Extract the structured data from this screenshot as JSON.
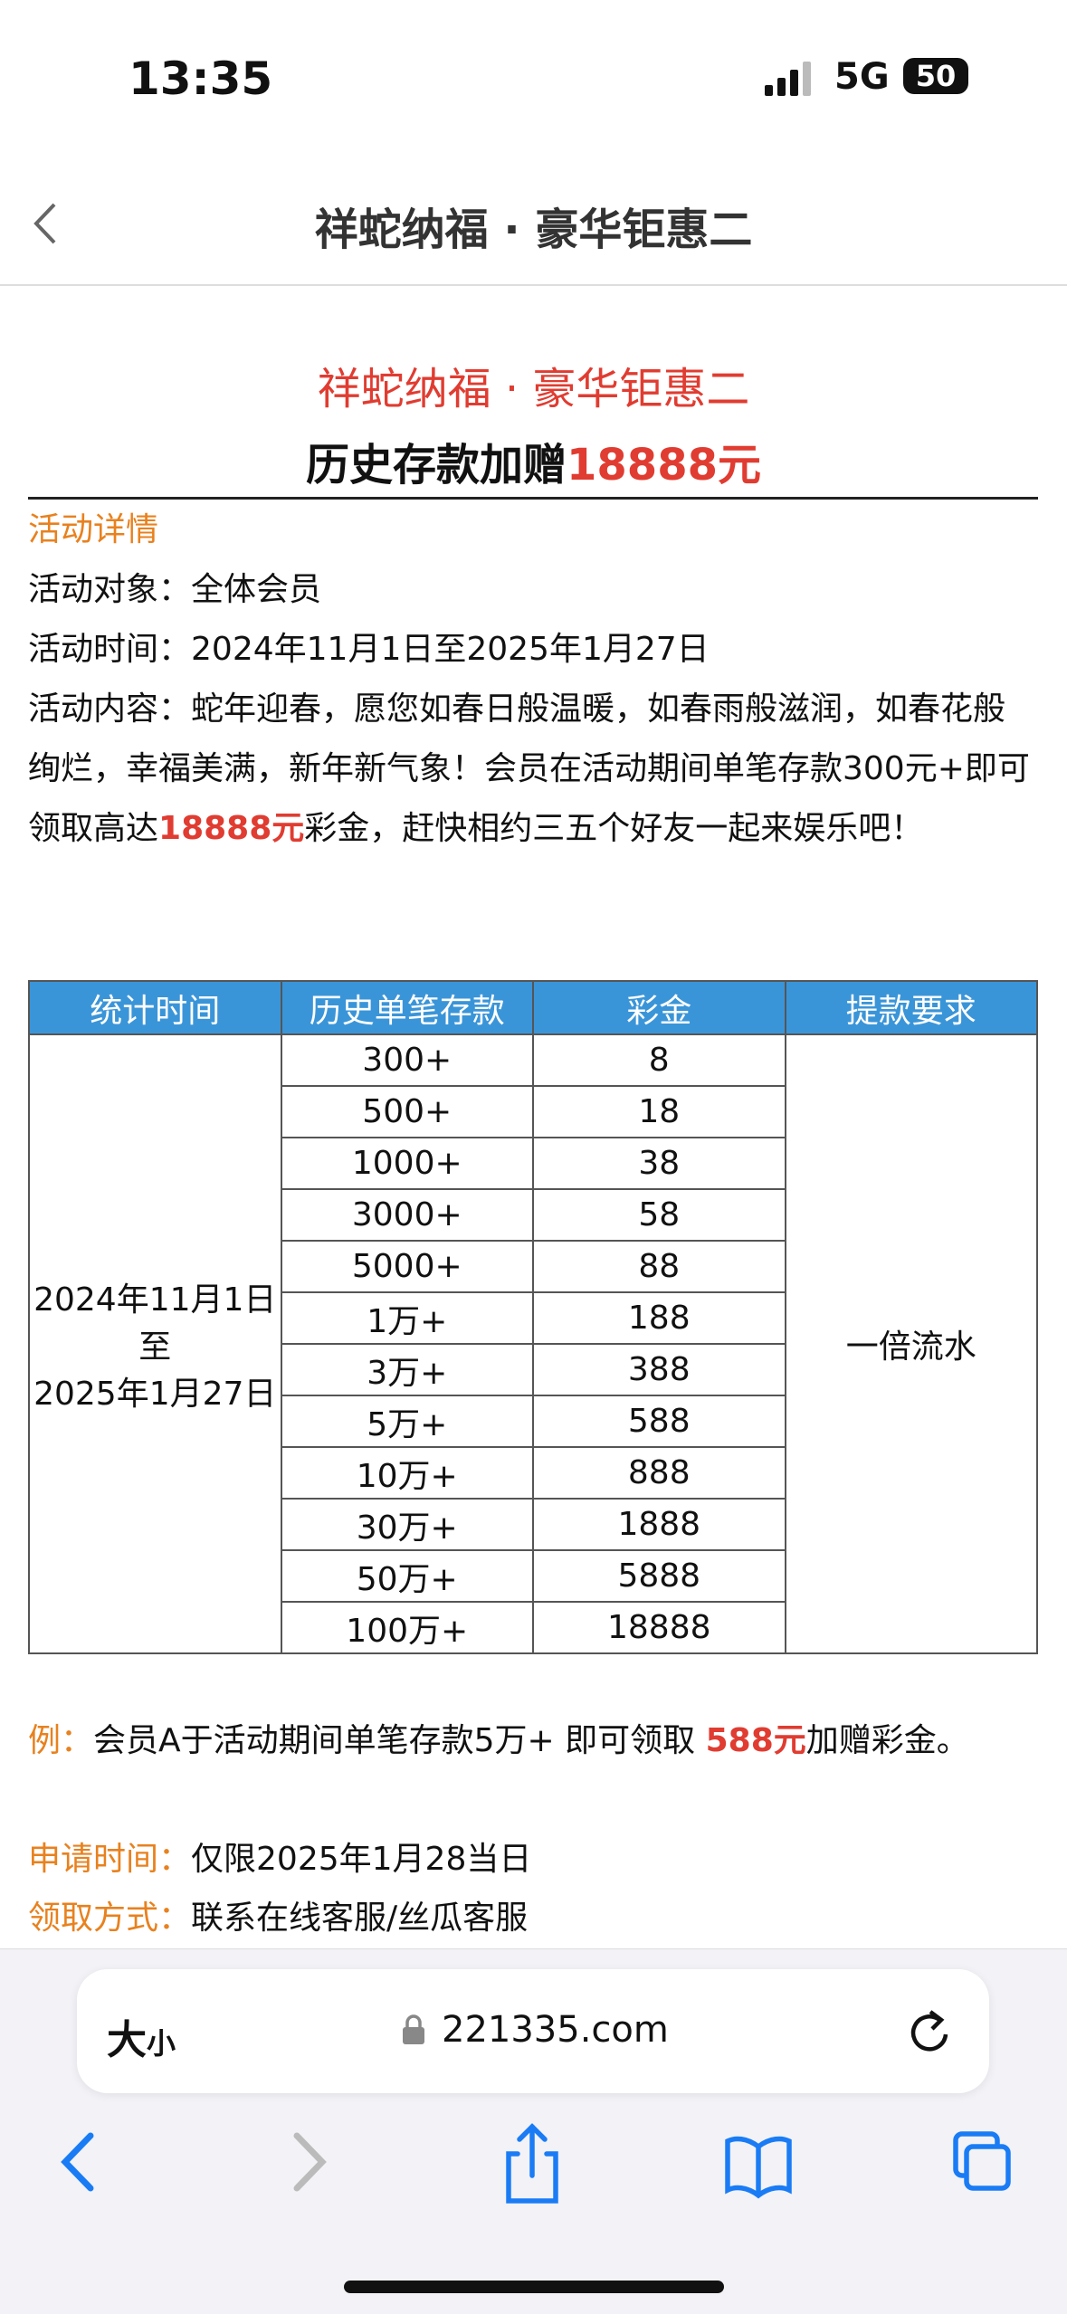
{
  "status_bar": {
    "time": "13:35",
    "network": "5G",
    "battery": "50"
  },
  "nav": {
    "title": "祥蛇纳福 · 豪华钜惠二"
  },
  "content": {
    "heading": "祥蛇纳福 · 豪华钜惠二",
    "subtitle": {
      "text": "历史存款加赠",
      "amount": "18888元"
    },
    "section_title": "活动详情",
    "target": {
      "label": "活动对象：",
      "value": "全体会员"
    },
    "period": {
      "label": "活动时间：",
      "value": "2024年11月1日至2025年1月27日"
    },
    "description": {
      "label": "活动内容：",
      "text": "蛇年迎春，愿您如春日般温暖，如春雨般滋润，如春花般绚烂，幸福美满，新年新气象！会员在活动期间单笔存款300元+即可领取高达",
      "amount": "18888元",
      "tail": "彩金，赶快相约三五个好友一起来娱乐吧！"
    }
  },
  "table": {
    "headers": [
      "统计时间",
      "历史单笔存款",
      "彩金",
      "提款要求"
    ],
    "period": [
      "2024年11月1日",
      "至",
      "2025年1月27日"
    ],
    "requirement": "一倍流水",
    "rows": [
      [
        "300+",
        "8"
      ],
      [
        "500+",
        "18"
      ],
      [
        "1000+",
        "38"
      ],
      [
        "3000+",
        "58"
      ],
      [
        "5000+",
        "88"
      ],
      [
        "1万+",
        "188"
      ],
      [
        "3万+",
        "388"
      ],
      [
        "5万+",
        "588"
      ],
      [
        "10万+",
        "888"
      ],
      [
        "30万+",
        "1888"
      ],
      [
        "50万+",
        "5888"
      ],
      [
        "100万+",
        "18888"
      ]
    ]
  },
  "example": {
    "label": "例：",
    "text": "会员A于活动期间单笔存款5万+ 即可领取 ",
    "amount": "588元",
    "tail": "加赠彩金。"
  },
  "apply_time": {
    "label": "申请时间：",
    "value": "仅限2025年1月28当日"
  },
  "claim_method": {
    "label": "领取方式：",
    "value": "联系在线客服/丝瓜客服"
  },
  "browser": {
    "text_size_large": "大",
    "text_size_small": "小",
    "url": "221335.com"
  }
}
